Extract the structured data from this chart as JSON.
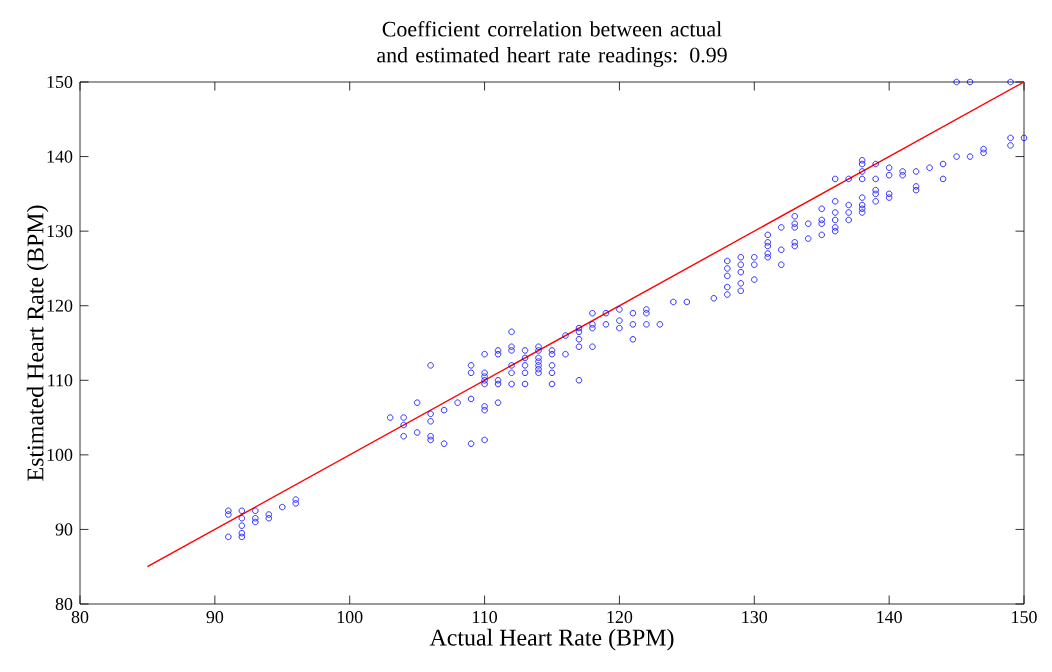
{
  "chart_data": {
    "type": "scatter",
    "title": "Coefficient correlation between actual and estimated heart rate readings: 0.99",
    "xlabel": "Actual Heart Rate (BPM)",
    "ylabel": "Estimated Heart Rate (BPM)",
    "xlim": [
      80,
      150
    ],
    "ylim": [
      80,
      150
    ],
    "xticks": [
      80,
      90,
      100,
      110,
      120,
      130,
      140,
      150
    ],
    "yticks": [
      80,
      90,
      100,
      110,
      120,
      130,
      140,
      150
    ],
    "grid": false,
    "series": [
      {
        "color": "#0000ff",
        "marker": "circle",
        "x": [
          91,
          91,
          91,
          92,
          92,
          92,
          92,
          92,
          93,
          93,
          93,
          94,
          94,
          95,
          96,
          96,
          103,
          104,
          104,
          104,
          105,
          105,
          106,
          106,
          106,
          106,
          106,
          107,
          107,
          108,
          109,
          109,
          109,
          109,
          110,
          110,
          110,
          110,
          110,
          110,
          110,
          110,
          111,
          111,
          111,
          111,
          111,
          112,
          112,
          112,
          112,
          112,
          112,
          113,
          113,
          113,
          113,
          113,
          114,
          114,
          114,
          114,
          114,
          114,
          114,
          115,
          115,
          115,
          115,
          115,
          116,
          116,
          117,
          117,
          117,
          117,
          117,
          118,
          118,
          118,
          118,
          119,
          119,
          120,
          120,
          120,
          121,
          121,
          121,
          122,
          122,
          122,
          123,
          124,
          125,
          127,
          128,
          128,
          128,
          128,
          128,
          129,
          129,
          129,
          129,
          129,
          130,
          130,
          130,
          131,
          131,
          131,
          131,
          131,
          132,
          132,
          132,
          133,
          133,
          133,
          133,
          133,
          134,
          134,
          135,
          135,
          135,
          135,
          136,
          136,
          136,
          136,
          136,
          136,
          137,
          137,
          137,
          137,
          138,
          138,
          138,
          138,
          138,
          138,
          138,
          138,
          139,
          139,
          139,
          139,
          139,
          140,
          140,
          140,
          140,
          141,
          141,
          142,
          142,
          142,
          143,
          144,
          144,
          145,
          145,
          146,
          146,
          147,
          147,
          149,
          149,
          149,
          150
        ],
        "values": [
          92.5,
          92,
          89,
          92.5,
          91.5,
          90.5,
          89.5,
          89,
          92.5,
          91.5,
          91,
          92,
          91.5,
          93,
          94,
          93.5,
          105,
          105,
          104,
          102.5,
          107,
          103,
          112,
          105.5,
          104.5,
          102.5,
          102,
          106,
          101.5,
          107,
          112,
          111,
          107.5,
          101.5,
          113.5,
          111,
          110.5,
          110,
          109.5,
          106.5,
          106,
          102,
          114,
          113.5,
          110,
          109.5,
          107,
          116.5,
          114.5,
          114,
          112,
          111,
          109.5,
          114,
          113,
          112,
          111,
          109.5,
          114.5,
          114,
          113,
          112.5,
          112,
          111.5,
          111,
          114,
          113.5,
          112,
          111,
          109.5,
          116,
          113.5,
          117,
          116.5,
          115.5,
          114.5,
          110,
          119,
          117.5,
          117,
          114.5,
          119,
          117.5,
          119.5,
          118,
          117,
          119,
          117.5,
          115.5,
          119.5,
          119,
          117.5,
          117.5,
          120.5,
          120.5,
          121,
          126,
          125,
          124,
          122.5,
          121.5,
          126.5,
          125.5,
          124.5,
          123,
          122,
          126.5,
          125.5,
          123.5,
          129.5,
          128.5,
          128,
          127,
          126.5,
          130.5,
          127.5,
          125.5,
          132,
          131,
          130.5,
          128.5,
          128,
          131,
          129,
          133,
          131.5,
          131,
          129.5,
          137,
          134,
          132.5,
          131.5,
          130.5,
          130,
          137,
          133.5,
          132.5,
          131.5,
          139.5,
          139,
          138,
          137,
          134.5,
          133.5,
          133,
          132.5,
          139,
          137,
          135.5,
          135,
          134,
          138.5,
          137.5,
          135,
          134.5,
          138,
          137.5,
          138,
          136,
          135.5,
          138.5,
          139,
          137,
          150,
          140,
          150,
          140,
          141,
          140.5,
          150,
          142.5,
          141.5,
          142.5
        ]
      },
      {
        "type": "line",
        "color": "#ff0000",
        "line_style": "solid",
        "x": [
          85,
          150
        ],
        "values": [
          85,
          150
        ]
      }
    ]
  }
}
